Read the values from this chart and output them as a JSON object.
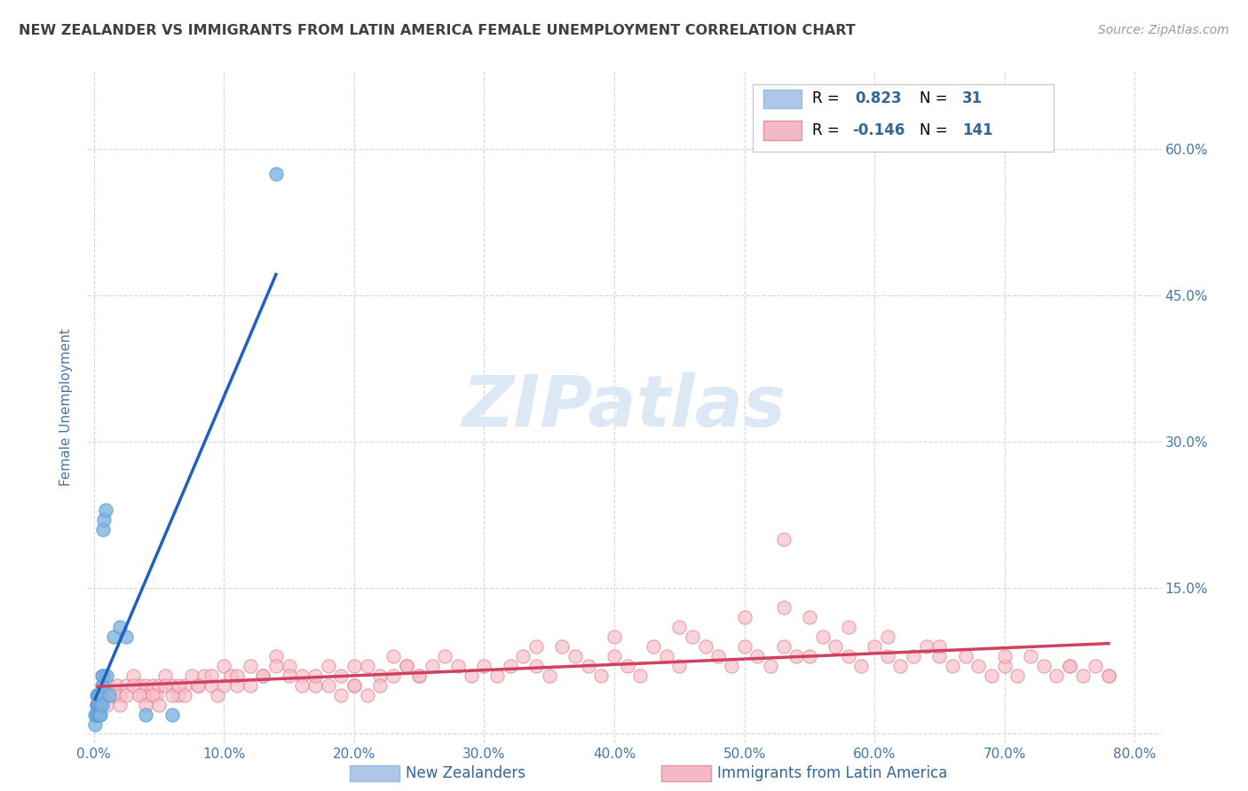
{
  "title": "NEW ZEALANDER VS IMMIGRANTS FROM LATIN AMERICA FEMALE UNEMPLOYMENT CORRELATION CHART",
  "source": "Source: ZipAtlas.com",
  "ylabel": "Female Unemployment",
  "watermark": "ZIPatlas",
  "xlim": [
    -0.005,
    0.82
  ],
  "ylim": [
    -0.01,
    0.68
  ],
  "xticks": [
    0.0,
    0.1,
    0.2,
    0.3,
    0.4,
    0.5,
    0.6,
    0.7,
    0.8
  ],
  "yticks": [
    0.0,
    0.15,
    0.3,
    0.45,
    0.6
  ],
  "ytick_labels_right": [
    "",
    "15.0%",
    "30.0%",
    "45.0%",
    "60.0%"
  ],
  "xtick_labels": [
    "0.0%",
    "10.0%",
    "20.0%",
    "30.0%",
    "40.0%",
    "50.0%",
    "60.0%",
    "70.0%",
    "80.0%"
  ],
  "series1_color": "#7fb3e0",
  "series1_edge": "#5b9bd5",
  "series2_color": "#f8c0cb",
  "series2_edge": "#e08090",
  "trendline1_color": "#2060c0",
  "trendline2_color": "#d04060",
  "trendline1_dash_color": "#aaaaaa",
  "background_color": "#ffffff",
  "grid_color": "#cccccc",
  "title_color": "#404040",
  "watermark_color": "#dde8f5",
  "tick_label_color": "#4477aa",
  "ylabel_color": "#4477aa",
  "legend_box_color1": "#aec6e8",
  "legend_box_color2": "#f4b8c8",
  "legend_text_color": "#000000",
  "legend_val_color": "#336699",
  "bottom_label_color": "#336699",
  "series1_x": [
    0.001,
    0.001,
    0.002,
    0.002,
    0.002,
    0.002,
    0.003,
    0.003,
    0.003,
    0.003,
    0.004,
    0.004,
    0.004,
    0.005,
    0.005,
    0.005,
    0.006,
    0.006,
    0.006,
    0.007,
    0.007,
    0.008,
    0.009,
    0.01,
    0.012,
    0.015,
    0.02,
    0.025,
    0.04,
    0.06,
    0.14
  ],
  "series1_y": [
    0.01,
    0.02,
    0.03,
    0.04,
    0.02,
    0.03,
    0.02,
    0.04,
    0.03,
    0.02,
    0.03,
    0.04,
    0.02,
    0.03,
    0.04,
    0.02,
    0.06,
    0.05,
    0.03,
    0.06,
    0.21,
    0.22,
    0.23,
    0.06,
    0.04,
    0.1,
    0.11,
    0.1,
    0.02,
    0.02,
    0.575
  ],
  "series2_x": [
    0.003,
    0.005,
    0.007,
    0.01,
    0.012,
    0.015,
    0.018,
    0.02,
    0.025,
    0.03,
    0.035,
    0.038,
    0.04,
    0.042,
    0.045,
    0.048,
    0.05,
    0.055,
    0.06,
    0.065,
    0.07,
    0.075,
    0.08,
    0.085,
    0.09,
    0.095,
    0.1,
    0.105,
    0.11,
    0.12,
    0.13,
    0.14,
    0.15,
    0.16,
    0.17,
    0.18,
    0.19,
    0.2,
    0.21,
    0.22,
    0.23,
    0.24,
    0.25,
    0.26,
    0.27,
    0.28,
    0.29,
    0.3,
    0.31,
    0.32,
    0.33,
    0.34,
    0.35,
    0.36,
    0.37,
    0.38,
    0.39,
    0.4,
    0.41,
    0.42,
    0.43,
    0.44,
    0.45,
    0.46,
    0.47,
    0.48,
    0.49,
    0.5,
    0.51,
    0.52,
    0.53,
    0.54,
    0.55,
    0.56,
    0.57,
    0.58,
    0.59,
    0.6,
    0.61,
    0.62,
    0.63,
    0.64,
    0.65,
    0.66,
    0.67,
    0.68,
    0.69,
    0.7,
    0.71,
    0.72,
    0.73,
    0.74,
    0.75,
    0.76,
    0.77,
    0.78,
    0.005,
    0.01,
    0.015,
    0.02,
    0.025,
    0.03,
    0.035,
    0.04,
    0.045,
    0.05,
    0.055,
    0.06,
    0.065,
    0.07,
    0.08,
    0.09,
    0.1,
    0.11,
    0.12,
    0.13,
    0.14,
    0.15,
    0.16,
    0.17,
    0.18,
    0.19,
    0.2,
    0.21,
    0.22,
    0.23,
    0.24,
    0.25,
    0.34,
    0.4,
    0.45,
    0.5,
    0.53,
    0.55,
    0.58,
    0.61,
    0.65,
    0.7,
    0.75,
    0.78,
    0.53,
    0.2
  ],
  "series2_y": [
    0.03,
    0.04,
    0.05,
    0.04,
    0.05,
    0.04,
    0.05,
    0.04,
    0.05,
    0.06,
    0.05,
    0.04,
    0.05,
    0.04,
    0.05,
    0.04,
    0.05,
    0.06,
    0.05,
    0.04,
    0.05,
    0.06,
    0.05,
    0.06,
    0.05,
    0.04,
    0.07,
    0.06,
    0.05,
    0.07,
    0.06,
    0.08,
    0.07,
    0.06,
    0.05,
    0.07,
    0.06,
    0.05,
    0.07,
    0.06,
    0.08,
    0.07,
    0.06,
    0.07,
    0.08,
    0.07,
    0.06,
    0.07,
    0.06,
    0.07,
    0.08,
    0.07,
    0.06,
    0.09,
    0.08,
    0.07,
    0.06,
    0.08,
    0.07,
    0.06,
    0.09,
    0.08,
    0.07,
    0.1,
    0.09,
    0.08,
    0.07,
    0.09,
    0.08,
    0.07,
    0.09,
    0.08,
    0.08,
    0.1,
    0.09,
    0.08,
    0.07,
    0.09,
    0.08,
    0.07,
    0.08,
    0.09,
    0.08,
    0.07,
    0.08,
    0.07,
    0.06,
    0.07,
    0.06,
    0.08,
    0.07,
    0.06,
    0.07,
    0.06,
    0.07,
    0.06,
    0.04,
    0.03,
    0.04,
    0.03,
    0.04,
    0.05,
    0.04,
    0.03,
    0.04,
    0.03,
    0.05,
    0.04,
    0.05,
    0.04,
    0.05,
    0.06,
    0.05,
    0.06,
    0.05,
    0.06,
    0.07,
    0.06,
    0.05,
    0.06,
    0.05,
    0.04,
    0.05,
    0.04,
    0.05,
    0.06,
    0.07,
    0.06,
    0.09,
    0.1,
    0.11,
    0.12,
    0.13,
    0.12,
    0.11,
    0.1,
    0.09,
    0.08,
    0.07,
    0.06,
    0.2,
    0.07
  ]
}
